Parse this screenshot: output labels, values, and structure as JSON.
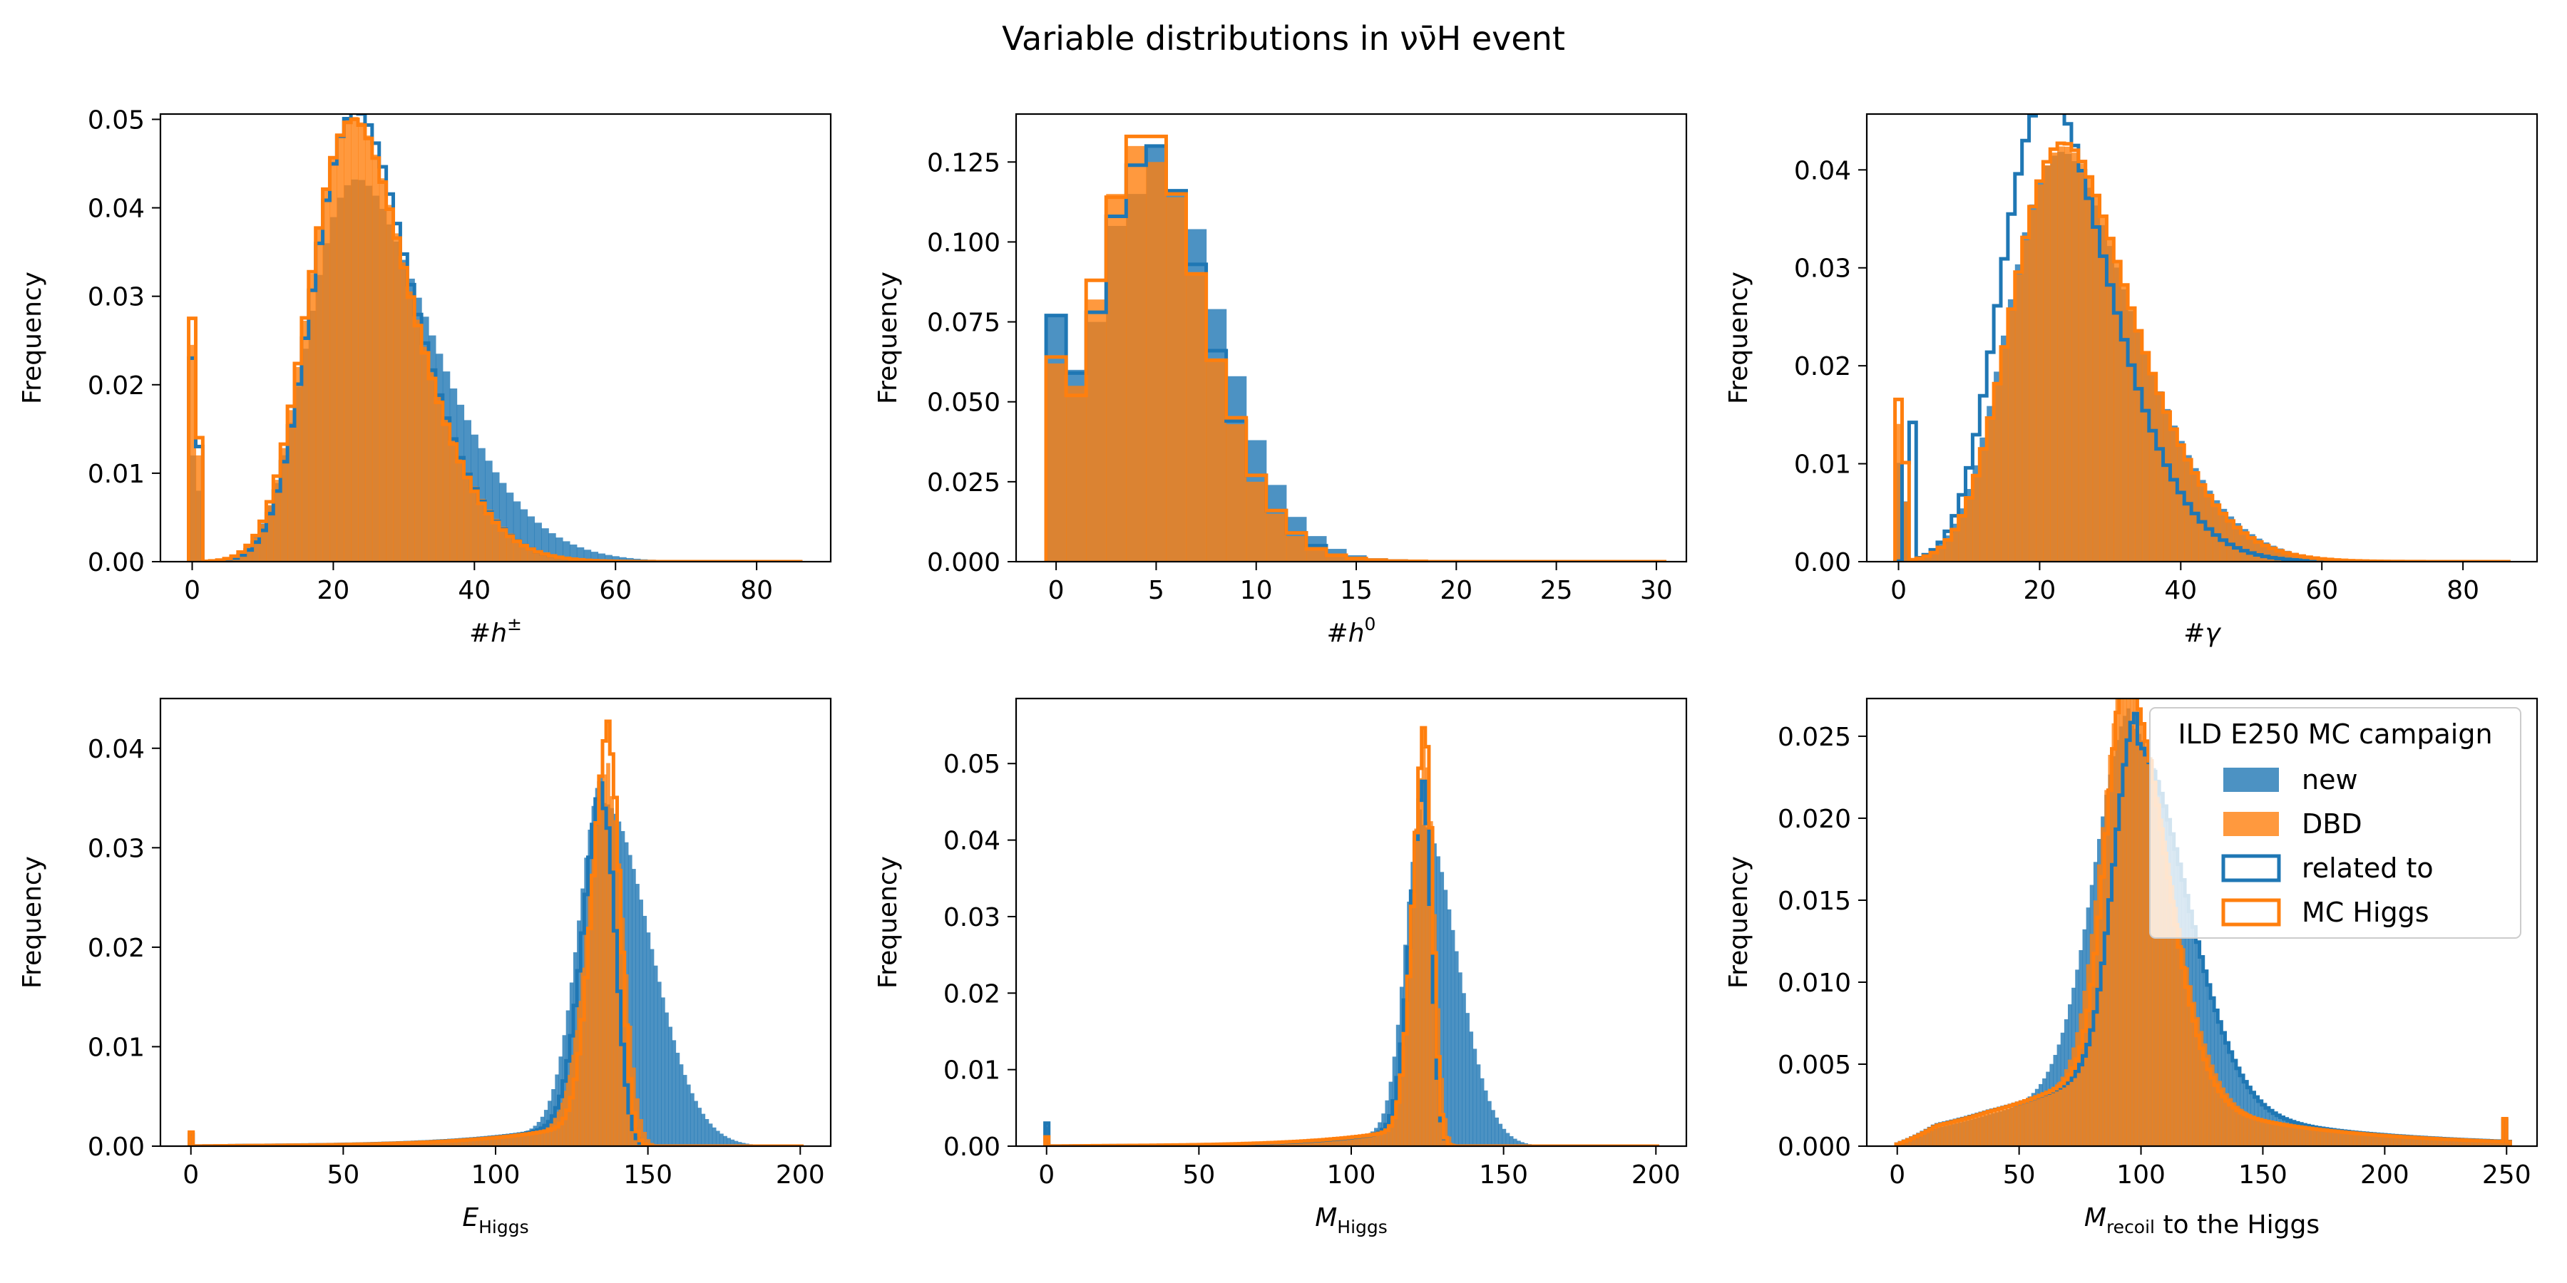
{
  "figure": {
    "title": "Variable distributions in νν̄H event"
  },
  "colors": {
    "new": "#1f77b4",
    "dbd": "#ff7f0e"
  },
  "legend": {
    "title": "ILD E250 MC campaign",
    "entries": [
      "new",
      "DBD",
      "related to",
      "MC Higgs"
    ],
    "placement": "upper right of last panel"
  },
  "chart_data": [
    {
      "type": "histogram",
      "ylabel": "Frequency",
      "xlabel": {
        "main": "#h",
        "sup": "±",
        "sub": ""
      },
      "xlim": [
        -4.5,
        90.5
      ],
      "ylim": [
        0,
        0.0506
      ],
      "xticks": [
        0,
        20,
        40,
        60,
        80
      ],
      "yticks": [
        0,
        0.01,
        0.02,
        0.03,
        0.04,
        0.05
      ],
      "ytick_labels": [
        "0.00",
        "0.01",
        "0.02",
        "0.03",
        "0.04",
        "0.05"
      ],
      "bin_width": 1,
      "bin_start": -0.5,
      "bins_to": 86,
      "series": {
        "new_filled": {
          "kind": "skewnormal",
          "xi": 16.5,
          "omega": 14.6,
          "alpha": 3.0,
          "weight": 0.96,
          "spike": [
            0,
            0.012
          ],
          "spike2": [
            1,
            0.008
          ]
        },
        "dbd_filled": {
          "kind": "skewnormal",
          "xi": 17.0,
          "omega": 11.4,
          "alpha": 2.3,
          "weight": 0.93,
          "spike": [
            0,
            0.0245
          ],
          "spike2": [
            1,
            0.012
          ]
        },
        "new_step": {
          "kind": "skewnormal",
          "xi": 17.5,
          "omega": 11.0,
          "alpha": 2.2,
          "weight": 0.92,
          "spike": [
            0,
            0.023
          ],
          "spike2": [
            1,
            0.013
          ]
        },
        "dbd_step": {
          "kind": "skewnormal",
          "xi": 17.0,
          "omega": 11.2,
          "alpha": 2.2,
          "weight": 0.92,
          "spike": [
            0,
            0.0275
          ],
          "spike2": [
            1,
            0.014
          ]
        }
      }
    },
    {
      "type": "histogram",
      "ylabel": "Frequency",
      "xlabel": {
        "main": "#h",
        "sup": "0",
        "sub": ""
      },
      "xlim": [
        -2.0,
        31.5
      ],
      "ylim": [
        0,
        0.14
      ],
      "xticks": [
        0,
        5,
        10,
        15,
        20,
        25,
        30
      ],
      "yticks": [
        0,
        0.025,
        0.05,
        0.075,
        0.1,
        0.125
      ],
      "ytick_labels": [
        "0.000",
        "0.025",
        "0.050",
        "0.075",
        "0.100",
        "0.125"
      ],
      "bin_width": 1,
      "bin_start": -0.5,
      "bins_to": 30,
      "series": {
        "new_filled": {
          "kind": "table",
          "values": [
            0.077,
            0.06,
            0.075,
            0.105,
            0.115,
            0.13,
            0.115,
            0.104,
            0.079,
            0.058,
            0.038,
            0.024,
            0.014,
            0.008,
            0.004,
            0.002,
            0.001,
            0.0006,
            0.0003,
            0.0002,
            0.0001,
            0.0001,
            0,
            0,
            0,
            0,
            0,
            0,
            0,
            0,
            0
          ]
        },
        "dbd_filled": {
          "kind": "table",
          "values": [
            0.062,
            0.055,
            0.082,
            0.115,
            0.13,
            0.125,
            0.114,
            0.09,
            0.063,
            0.043,
            0.025,
            0.015,
            0.008,
            0.004,
            0.002,
            0.001,
            0.0005,
            0.0002,
            0.0001,
            0,
            0,
            0,
            0,
            0,
            0,
            0,
            0,
            0,
            0,
            0,
            0
          ]
        },
        "new_step": {
          "kind": "table",
          "values": [
            0.077,
            0.059,
            0.078,
            0.108,
            0.124,
            0.13,
            0.116,
            0.093,
            0.066,
            0.044,
            0.027,
            0.016,
            0.009,
            0.005,
            0.002,
            0.001,
            0.0005,
            0.0002,
            0.0001,
            0,
            0,
            0,
            0,
            0,
            0,
            0,
            0,
            0,
            0,
            0,
            0
          ]
        },
        "dbd_step": {
          "kind": "table",
          "values": [
            0.064,
            0.052,
            0.088,
            0.114,
            0.133,
            0.133,
            0.115,
            0.09,
            0.063,
            0.045,
            0.027,
            0.016,
            0.009,
            0.004,
            0.002,
            0.001,
            0.0005,
            0.0002,
            0.0001,
            0,
            0,
            0,
            0,
            0,
            0,
            0,
            0,
            0,
            0,
            0,
            0
          ]
        }
      }
    },
    {
      "type": "histogram",
      "ylabel": "Frequency",
      "xlabel": {
        "main": "#γ",
        "sup": "",
        "sub": ""
      },
      "xlim": [
        -4.5,
        90.5
      ],
      "ylim": [
        0,
        0.0457
      ],
      "xticks": [
        0,
        20,
        40,
        60,
        80
      ],
      "yticks": [
        0,
        0.01,
        0.02,
        0.03,
        0.04
      ],
      "ytick_labels": [
        "0.00",
        "0.01",
        "0.02",
        "0.03",
        "0.04"
      ],
      "bin_width": 1,
      "bin_start": -0.5,
      "bins_to": 86,
      "series": {
        "new_filled": {
          "kind": "skewnormal",
          "xi": 16.0,
          "omega": 14.0,
          "alpha": 2.4,
          "weight": 0.94,
          "spike": [
            0,
            0.01
          ],
          "spike2": [
            1,
            0.006
          ]
        },
        "dbd_filled": {
          "kind": "skewnormal",
          "xi": 16.5,
          "omega": 13.5,
          "alpha": 2.3,
          "weight": 0.93,
          "spike": [
            0,
            0.014
          ],
          "spike2": [
            1,
            0.006
          ]
        },
        "new_step": {
          "kind": "skewnormal",
          "xi": 15.0,
          "omega": 12.0,
          "alpha": 2.3,
          "weight": 0.93,
          "spike": [
            2,
            0.014
          ],
          "spike2": [
            1,
            0.01
          ]
        },
        "dbd_step": {
          "kind": "skewnormal",
          "xi": 16.5,
          "omega": 13.4,
          "alpha": 2.3,
          "weight": 0.93,
          "spike": [
            0,
            0.0165
          ],
          "spike2": [
            1,
            0.01
          ]
        }
      }
    },
    {
      "type": "histogram",
      "ylabel": "Frequency",
      "xlabel": {
        "main": "E",
        "sup": "",
        "sub": "Higgs"
      },
      "xlim": [
        -10,
        210
      ],
      "ylim": [
        0,
        0.045
      ],
      "xticks": [
        0,
        50,
        100,
        150,
        200
      ],
      "yticks": [
        0,
        0.01,
        0.02,
        0.03,
        0.04
      ],
      "ytick_labels": [
        "0.00",
        "0.01",
        "0.02",
        "0.03",
        "0.04"
      ],
      "bin_width": 1.2,
      "bin_start": -0.5,
      "bins_to": 200,
      "series": {
        "new_filled": {
          "kind": "peak",
          "mu": 135.5,
          "gl": 8.0,
          "gr": 15.0,
          "height": 0.0345,
          "tail": 0.003,
          "tail_scale": 30,
          "tail_start": 0,
          "spike": [
            0,
            0.0006
          ]
        },
        "dbd_filled": {
          "kind": "peak",
          "mu": 137.5,
          "gl": 7.0,
          "gr": 4.5,
          "height": 0.0355,
          "tail": 0.0032,
          "tail_scale": 32,
          "tail_start": 0,
          "spike": [
            0,
            0.0008
          ]
        },
        "new_step": {
          "kind": "peak",
          "mu": 135.5,
          "gl": 6.5,
          "gr": 4.0,
          "height": 0.034,
          "tail": 0.003,
          "tail_scale": 30,
          "tail_start": 0,
          "spike": [
            0,
            0.0012
          ]
        },
        "dbd_step": {
          "kind": "peak",
          "mu": 137.5,
          "gl": 5.5,
          "gr": 3.5,
          "height": 0.04,
          "tail": 0.003,
          "tail_scale": 30,
          "tail_start": 0,
          "spike": [
            0,
            0.0014
          ]
        }
      }
    },
    {
      "type": "histogram",
      "ylabel": "Frequency",
      "xlabel": {
        "main": "M",
        "sup": "",
        "sub": "Higgs"
      },
      "xlim": [
        -10,
        210
      ],
      "ylim": [
        0,
        0.0585
      ],
      "xticks": [
        0,
        50,
        100,
        150,
        200
      ],
      "yticks": [
        0,
        0.01,
        0.02,
        0.03,
        0.04,
        0.05
      ],
      "ytick_labels": [
        "0.00",
        "0.01",
        "0.02",
        "0.03",
        "0.04",
        "0.05"
      ],
      "bin_width": 1.2,
      "bin_start": -0.5,
      "bins_to": 200,
      "series": {
        "new_filled": {
          "kind": "peak",
          "mu": 123.5,
          "gl": 5.5,
          "gr": 11.0,
          "height": 0.042,
          "tail": 0.0028,
          "tail_scale": 26,
          "tail_start": 0,
          "spike": [
            0,
            0.0025
          ]
        },
        "dbd_filled": {
          "kind": "peak",
          "mu": 124.5,
          "gl": 4.5,
          "gr": 2.8,
          "height": 0.05,
          "tail": 0.003,
          "tail_scale": 28,
          "tail_start": 0,
          "spike": [
            0,
            0.001
          ]
        },
        "new_step": {
          "kind": "peak",
          "mu": 124.0,
          "gl": 4.5,
          "gr": 2.5,
          "height": 0.045,
          "tail": 0.0028,
          "tail_scale": 26,
          "tail_start": 0,
          "spike": [
            0,
            0.003
          ]
        },
        "dbd_step": {
          "kind": "peak",
          "mu": 124.5,
          "gl": 4.0,
          "gr": 2.3,
          "height": 0.053,
          "tail": 0.0028,
          "tail_scale": 28,
          "tail_start": 0,
          "spike": [
            0,
            0.0012
          ]
        }
      }
    },
    {
      "type": "histogram",
      "ylabel": "Frequency",
      "xlabel": {
        "main": "M",
        "sup": "",
        "sub": "recoil",
        "suffix": " to the Higgs"
      },
      "xlim": [
        -12.5,
        262.5
      ],
      "ylim": [
        0,
        0.0273
      ],
      "xticks": [
        0,
        50,
        100,
        150,
        200,
        250
      ],
      "yticks": [
        0,
        0.005,
        0.01,
        0.015,
        0.02,
        0.025
      ],
      "ytick_labels": [
        "0.000",
        "0.005",
        "0.010",
        "0.015",
        "0.020",
        "0.025"
      ],
      "bin_width": 1.5,
      "bin_start": -0.5,
      "bins_to": 251,
      "series": {
        "new_filled": {
          "kind": "peak",
          "mu": 96.0,
          "gl": 15.0,
          "gr": 22.0,
          "height": 0.021,
          "tail": 0.0055,
          "tail_scale": 45,
          "tail_start": 120,
          "tail_floor": 0.0007,
          "spike": [
            250,
            0.0013
          ]
        },
        "dbd_filled": {
          "kind": "peak",
          "mu": 94.0,
          "gl": 10.0,
          "gr": 17.0,
          "height": 0.0235,
          "tail": 0.0055,
          "tail_scale": 45,
          "tail_start": 115,
          "tail_floor": 0.0007,
          "spike": [
            250,
            0.001
          ]
        },
        "new_step": {
          "kind": "peak",
          "mu": 98.0,
          "gl": 9.0,
          "gr": 21.0,
          "height": 0.02,
          "tail": 0.006,
          "tail_scale": 48,
          "tail_start": 115,
          "tail_floor": 0.0007,
          "spike": [
            250,
            0.0013
          ]
        },
        "dbd_step": {
          "kind": "peak",
          "mu": 94.5,
          "gl": 8.5,
          "gr": 15.5,
          "height": 0.0235,
          "tail": 0.0058,
          "tail_scale": 46,
          "tail_start": 110,
          "tail_floor": 0.0007,
          "spike": [
            250,
            0.0014
          ]
        }
      }
    }
  ]
}
